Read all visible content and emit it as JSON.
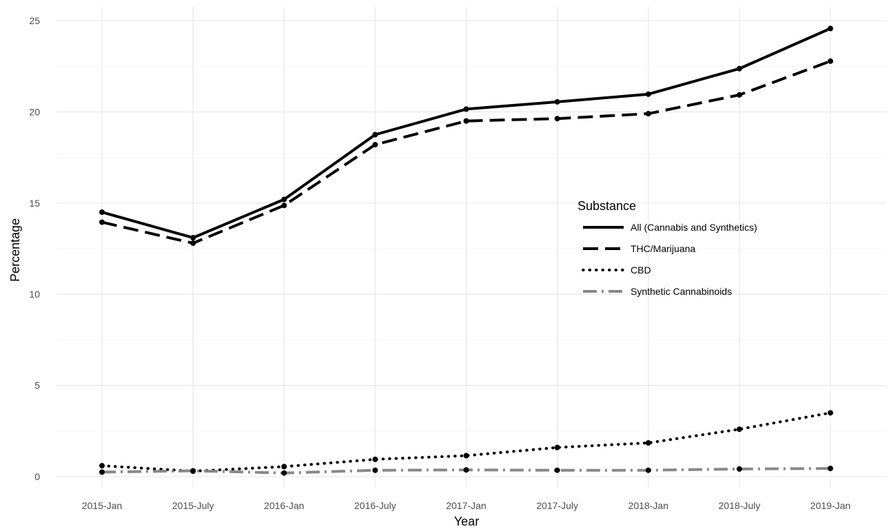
{
  "chart_data": {
    "type": "line",
    "xlabel": "Year",
    "ylabel": "Percentage",
    "categories": [
      "2015-Jan",
      "2015-July",
      "2016-Jan",
      "2016-July",
      "2017-Jan",
      "2017-July",
      "2018-Jan",
      "2018-July",
      "2019-Jan"
    ],
    "ylim": [
      0,
      25
    ],
    "yticks": [
      0,
      5,
      10,
      15,
      20,
      25
    ],
    "grid": true,
    "legend_title": "Substance",
    "legend_position": "right",
    "series": [
      {
        "name": "All (Cannabis and Synthetics)",
        "color": "#000000",
        "dash": "solid",
        "values": [
          14.5,
          13.1,
          15.2,
          18.75,
          20.15,
          20.55,
          20.97,
          22.37,
          24.57
        ]
      },
      {
        "name": "THC/Marijuana",
        "color": "#000000",
        "dash": "dashed",
        "values": [
          13.95,
          12.8,
          14.87,
          18.2,
          19.5,
          19.63,
          19.9,
          20.93,
          22.78
        ]
      },
      {
        "name": "CBD",
        "color": "#000000",
        "dash": "dotted",
        "values": [
          0.6,
          0.3,
          0.55,
          0.95,
          1.15,
          1.6,
          1.85,
          2.6,
          3.5
        ]
      },
      {
        "name": "Synthetic Cannabinoids",
        "color": "#888888",
        "dash": "dotdash",
        "values": [
          0.25,
          0.32,
          0.2,
          0.35,
          0.37,
          0.35,
          0.35,
          0.42,
          0.45
        ]
      }
    ]
  }
}
